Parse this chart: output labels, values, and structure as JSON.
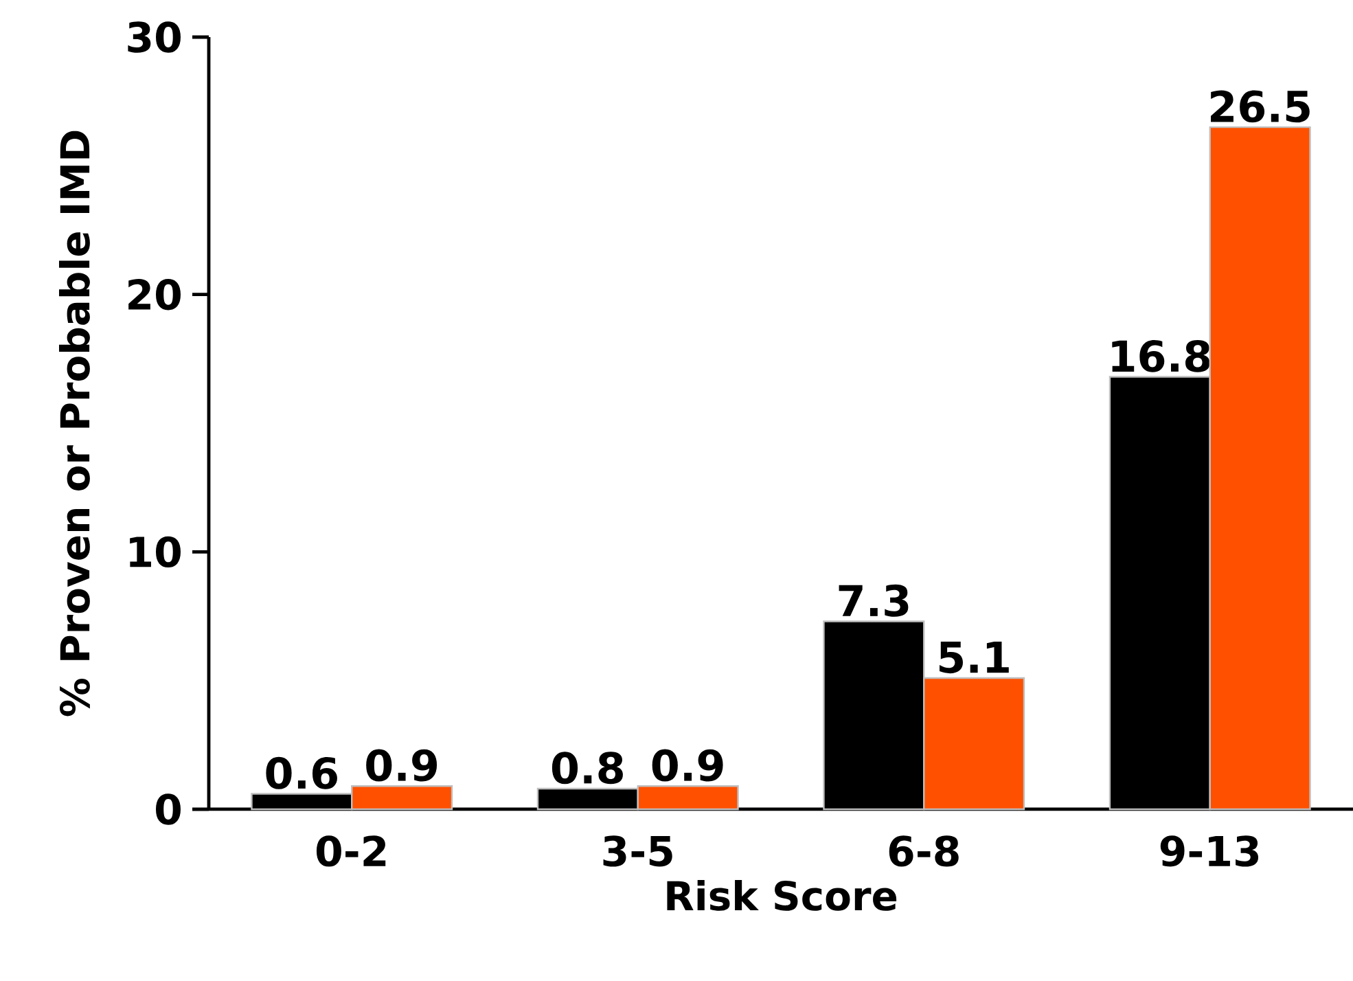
{
  "chart_data": {
    "type": "bar",
    "xlabel": "Risk Score",
    "ylabel": "% Proven or Probable IMD",
    "categories": [
      "0-2",
      "3-5",
      "6-8",
      "9-13"
    ],
    "series": [
      {
        "color": "#000000",
        "values": [
          0.6,
          0.8,
          7.3,
          16.8
        ]
      },
      {
        "color": "#ff5000",
        "values": [
          0.9,
          0.9,
          5.1,
          26.5
        ]
      }
    ],
    "ylim": [
      0,
      30
    ],
    "yticks": [
      0,
      10,
      20,
      30
    ],
    "data_labels": true,
    "grid": false
  }
}
